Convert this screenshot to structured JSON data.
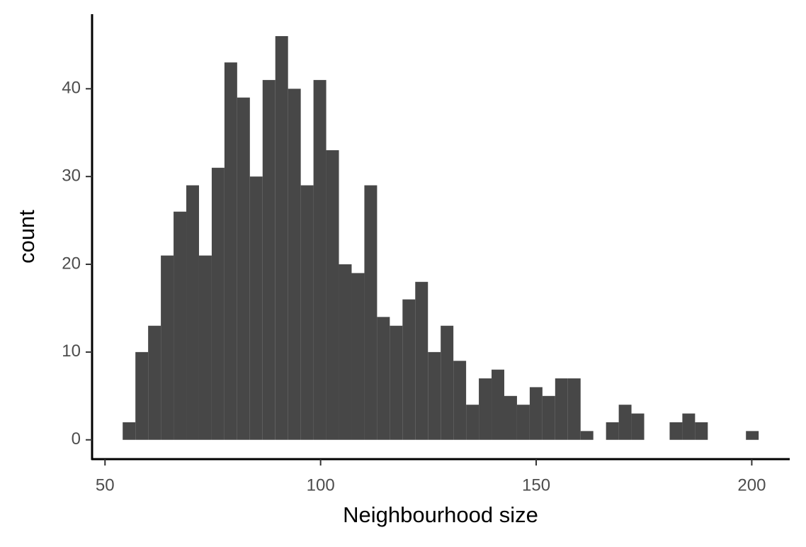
{
  "chart_data": {
    "type": "histogram",
    "x_label": "Neighbourhood size",
    "y_label": "count",
    "color": "#474747",
    "bins": [
      54.1,
      57.05,
      60.0,
      62.95,
      65.9,
      68.85,
      71.8,
      74.75,
      77.7,
      80.65,
      83.6,
      86.55,
      89.5,
      92.45,
      95.4,
      98.35,
      101.3,
      104.25,
      107.2,
      110.15,
      113.1,
      116.05,
      119.0,
      121.95,
      124.9,
      127.85,
      130.8,
      133.75,
      136.7,
      139.65,
      142.6,
      145.55,
      148.5,
      151.45,
      154.4,
      157.35,
      160.3,
      163.25,
      166.2,
      169.15,
      172.1,
      175.05,
      178.0,
      180.95,
      183.9,
      186.85,
      189.8,
      192.75,
      195.7,
      198.65,
      201.6
    ],
    "values": [
      2,
      10,
      13,
      21,
      26,
      29,
      21,
      31,
      43,
      39,
      30,
      41,
      46,
      40,
      29,
      41,
      33,
      20,
      19,
      29,
      14,
      13,
      16,
      18,
      10,
      13,
      9,
      4,
      7,
      8,
      5,
      4,
      6,
      5,
      7,
      7,
      1,
      0,
      2,
      4,
      3,
      0,
      0,
      2,
      3,
      2,
      0,
      0,
      0,
      1
    ],
    "xlim": [
      47.0,
      208.8
    ],
    "ylim": [
      -2.2,
      48.5
    ],
    "xticks": [
      50,
      100,
      150,
      200
    ],
    "yticks": [
      0,
      10,
      20,
      30,
      40
    ]
  }
}
